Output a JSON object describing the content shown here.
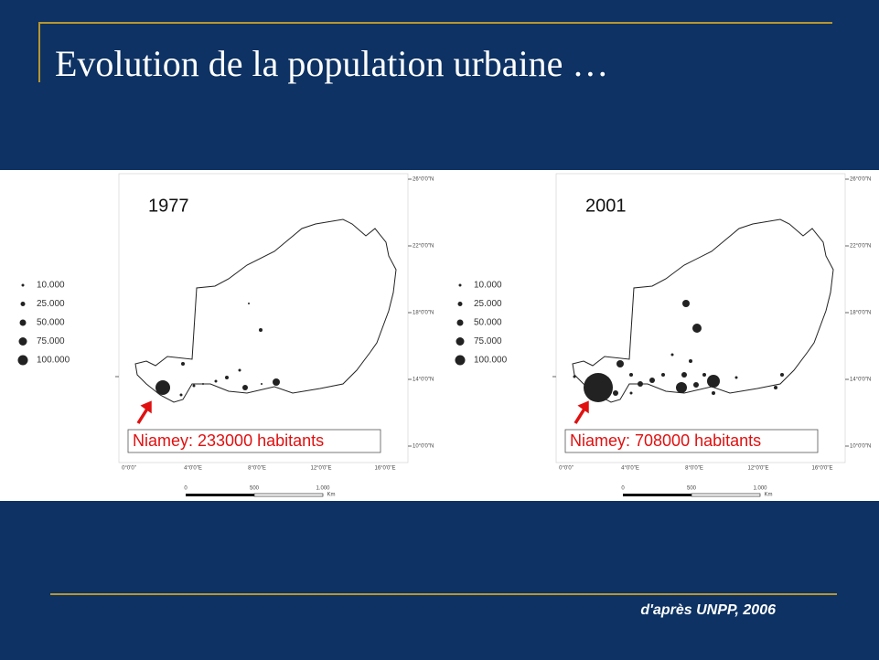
{
  "title": "Evolution de la population urbaine …",
  "maps": [
    {
      "year": "1977",
      "legend": [
        "10.000",
        "25.000",
        "50.000",
        "75.000",
        "100.000"
      ],
      "annotation": "Niamey: 233000 habitants",
      "lat_labels": [
        "26°0'0\"N",
        "22°0'0\"N",
        "18°0'0\"N",
        "14°0'0\"N",
        "10°0'0\"N"
      ],
      "lon_labels": [
        "0°0'0\"",
        "4°0'0\"E",
        "8°0'0\"E",
        "12°0'0\"E",
        "16°0'0\"E"
      ],
      "scale": [
        "0",
        "500",
        "1.000",
        "Km"
      ]
    },
    {
      "year": "2001",
      "legend": [
        "10.000",
        "25.000",
        "50.000",
        "75.000",
        "100.000"
      ],
      "annotation": "Niamey: 708000 habitants",
      "lat_labels": [
        "26°0'0\"N",
        "22°0'0\"N",
        "18°0'0\"N",
        "14°0'0\"N",
        "10°0'0\"N"
      ],
      "lon_labels": [
        "0°0'0\"",
        "4°0'0\"E",
        "8°0'0\"E",
        "12°0'0\"E",
        "16°0'0\"E"
      ],
      "scale": [
        "0",
        "500",
        "1.000",
        "Km"
      ]
    }
  ],
  "source": "d'après UNPP, 2006"
}
